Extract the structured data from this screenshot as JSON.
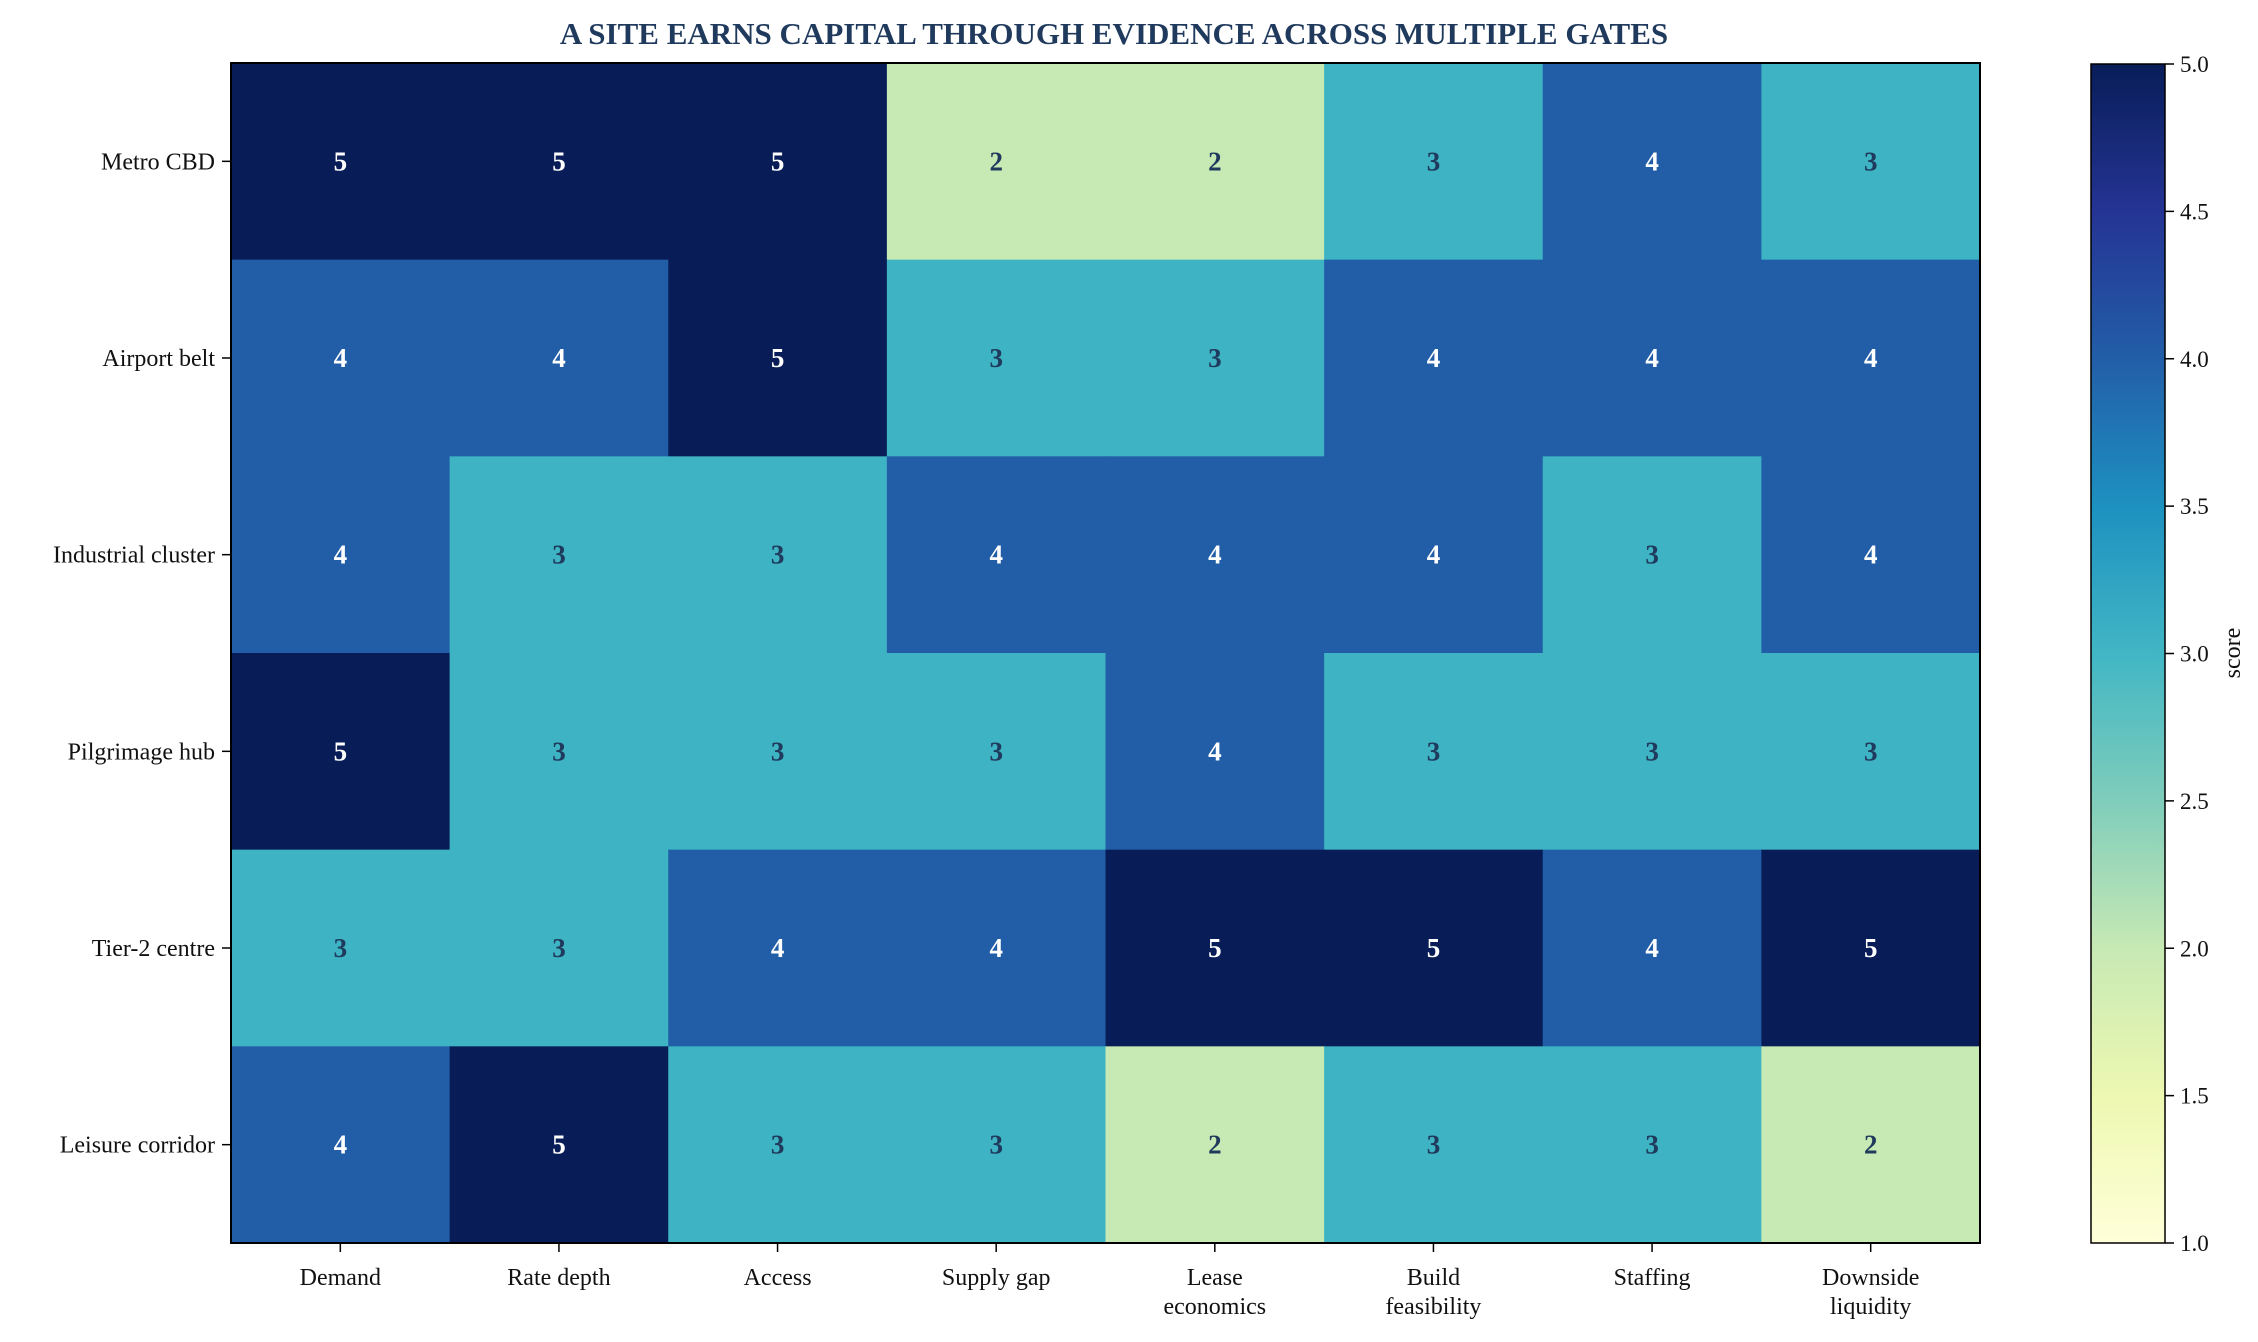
{
  "chart_data": {
    "type": "heatmap",
    "title": "A SITE EARNS CAPITAL THROUGH EVIDENCE ACROSS MULTIPLE GATES",
    "rows": [
      "Metro CBD",
      "Airport belt",
      "Industrial cluster",
      "Pilgrimage hub",
      "Tier-2 centre",
      "Leisure corridor"
    ],
    "columns": [
      [
        "Demand"
      ],
      [
        "Rate depth"
      ],
      [
        "Access"
      ],
      [
        "Supply gap"
      ],
      [
        "Lease",
        "economics"
      ],
      [
        "Build",
        "feasibility"
      ],
      [
        "Staffing"
      ],
      [
        "Downside",
        "liquidity"
      ]
    ],
    "values": [
      [
        5,
        5,
        5,
        2,
        2,
        3,
        4,
        3
      ],
      [
        4,
        4,
        5,
        3,
        3,
        4,
        4,
        4
      ],
      [
        4,
        3,
        3,
        4,
        4,
        4,
        3,
        4
      ],
      [
        5,
        3,
        3,
        3,
        4,
        3,
        3,
        3
      ],
      [
        3,
        3,
        4,
        4,
        5,
        5,
        4,
        5
      ],
      [
        4,
        5,
        3,
        3,
        2,
        3,
        3,
        2
      ]
    ],
    "colorbar": {
      "label": "score",
      "range": [
        1.0,
        5.0
      ],
      "ticks": [
        "1.0",
        "1.5",
        "2.0",
        "2.5",
        "3.0",
        "3.5",
        "4.0",
        "4.5",
        "5.0"
      ],
      "colormap": "YlGnBu"
    },
    "cell_colors": {
      "2": "#c7e9b4",
      "3": "#3db3c3",
      "4": "#225ea8",
      "5": "#081d58"
    },
    "text_colors": {
      "dark_bg": "#ffffff",
      "light_bg": "#1f3a5c"
    }
  }
}
